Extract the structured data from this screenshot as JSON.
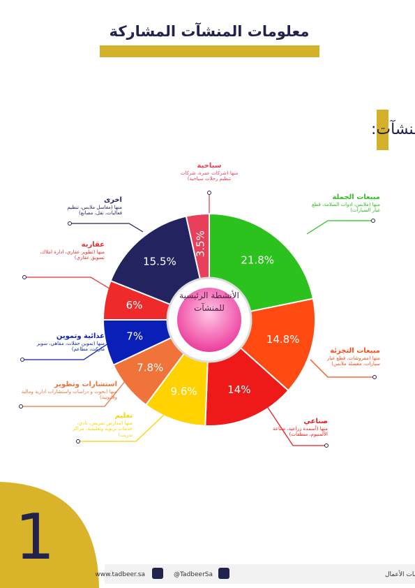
{
  "header": {
    "title": "معلومات المنشآت المشاركة"
  },
  "section": {
    "title": "الأنشطة الرئيسية للمنشآت:"
  },
  "chart_data": {
    "type": "pie",
    "center_label": "الأنشطة الرئيسية للمنشآت",
    "categories": [
      "مبيعات الجملة",
      "مبيعات التجزئة",
      "صناعي",
      "تعليم",
      "استشارات وتطوير",
      "غذائية وتموين",
      "عقارية",
      "اخرى",
      "سياحية"
    ],
    "descriptions": [
      "منها (ملابس، ادوات السلامة، قطع غيار السيارات)",
      "منها (مفروشات، قطع غيار سيارات، مغسلة ملابس)",
      "منها (أسمدة زراعية، صناعة الألمنيوم، منظفات)",
      "منها (مدارس تمريض، نادي، خدمات تربوية وتعليمية، مراكز تدريب)",
      "منها (بحوث و دراسات واستشارات ادارية ومالية وقانونية)",
      "منها (تموين حفلات، مقاهي، سوبر ماركت، مطاعم)",
      "منها (تطوير عقاري، ادارة املاك، تسويق عقاري)",
      "منها (مغاسل ملابس، تنظيم فعاليات، نقل، مصانع)",
      "منها (شركات عمرة، شركات تنظيم رحلات سياحية)"
    ],
    "values": [
      21.8,
      14.8,
      14,
      9.6,
      7.8,
      7,
      6,
      15.5,
      3.5
    ],
    "value_labels": [
      "21.8%",
      "14.8%",
      "14%",
      "9.6%",
      "7.8%",
      "7%",
      "6%",
      "15.5%",
      "3.5%"
    ],
    "colors": [
      "#2bc21e",
      "#ff4a12",
      "#ee1a1a",
      "#ffd200",
      "#f0733a",
      "#0a1fb8",
      "#ee2a2a",
      "#23235f",
      "#e8405a"
    ]
  },
  "page_number": "1",
  "footer": {
    "website": "www.tadbeer.sa",
    "twitter": "@TadbeerSa",
    "company": "شركة تدبير المتخصصة لخدمات الأعمال"
  }
}
